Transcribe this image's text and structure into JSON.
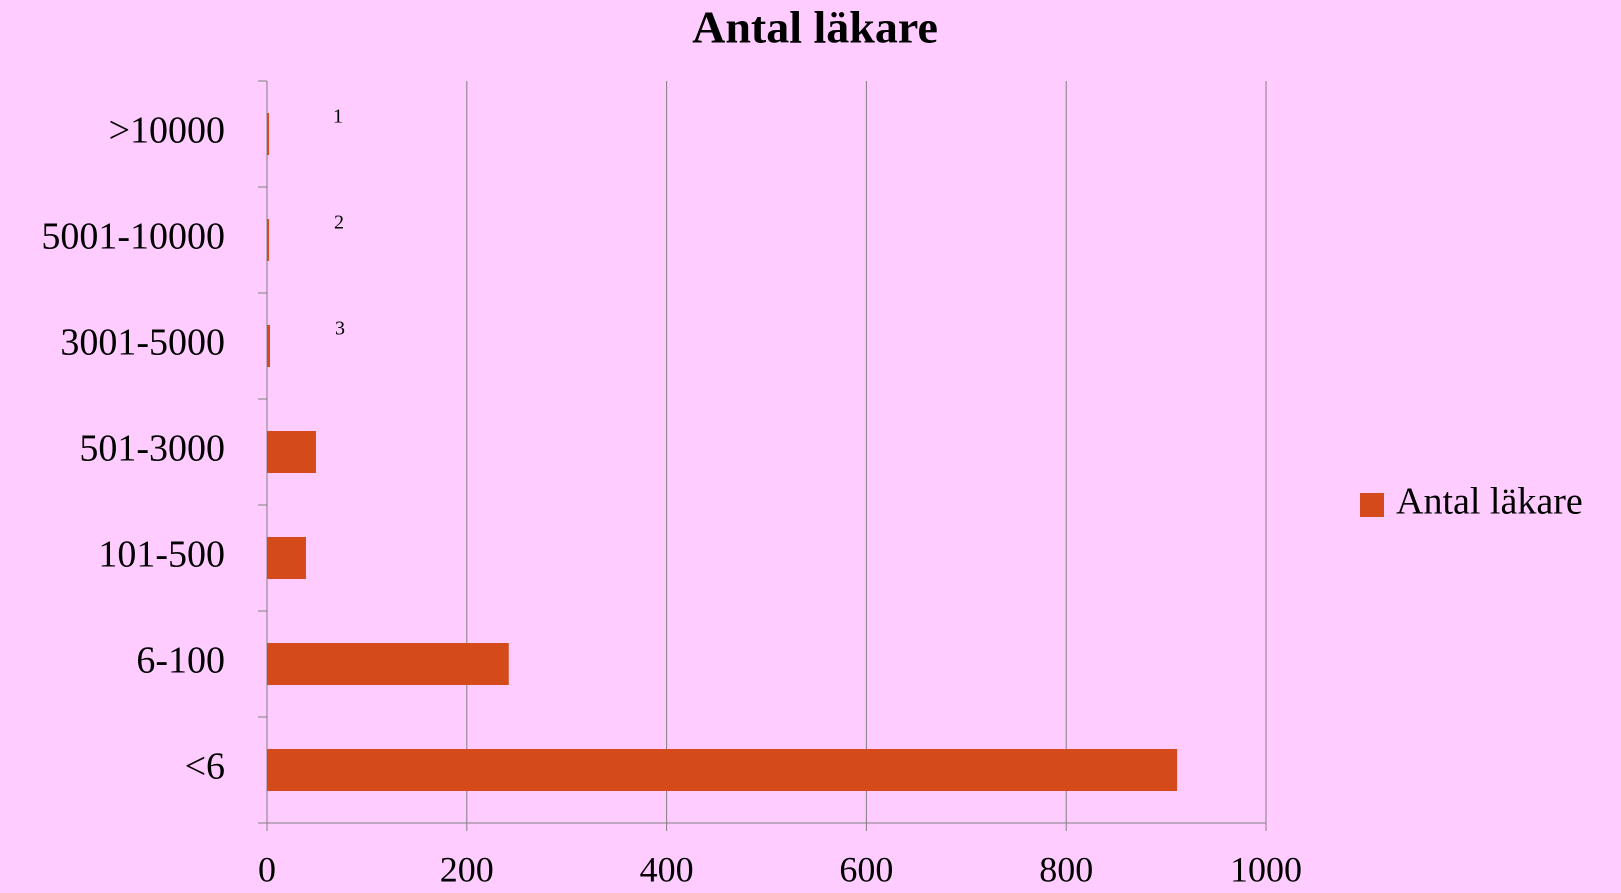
{
  "chart_data": {
    "type": "hbar",
    "title": "Antal läkare",
    "categories": [
      "<6",
      "6-100",
      "101-500",
      "501-3000",
      "3001-5000",
      "5001-10000",
      ">10000"
    ],
    "series": [
      {
        "name": "Antal läkare",
        "color": "#d44a1a",
        "values": [
          911,
          242,
          39,
          49,
          3,
          2,
          1
        ],
        "value_labels": [
          null,
          null,
          null,
          null,
          "3",
          "2",
          "1"
        ]
      }
    ],
    "xlim": [
      0,
      1000
    ],
    "xticks": [
      0,
      200,
      400,
      600,
      800,
      1000
    ],
    "grid": true,
    "legend": "right"
  }
}
